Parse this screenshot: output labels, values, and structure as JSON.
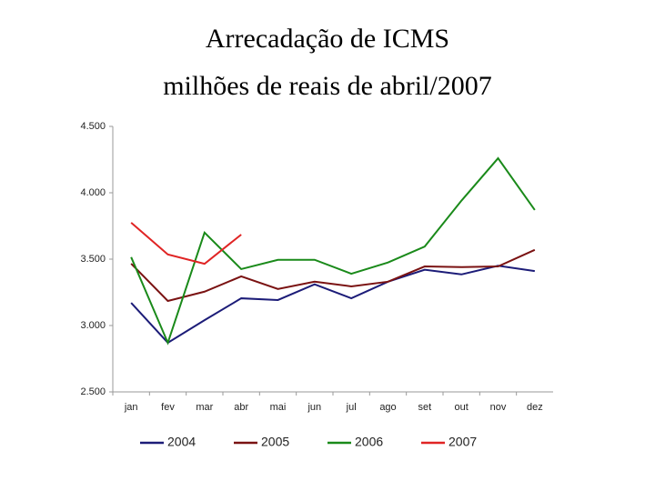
{
  "chart_data": {
    "type": "line",
    "title": "Arrecadação de ICMS",
    "subtitle": "milhões de reais de abril/2007",
    "categories": [
      "jan",
      "fev",
      "mar",
      "abr",
      "mai",
      "jun",
      "jul",
      "ago",
      "set",
      "out",
      "nov",
      "dez"
    ],
    "series": [
      {
        "name": "2004",
        "color": "#1c1c78",
        "values": [
          3171,
          2870,
          3040,
          3205,
          3192,
          3310,
          3205,
          3330,
          3420,
          3385,
          3450,
          3410
        ]
      },
      {
        "name": "2005",
        "color": "#7a1212",
        "values": [
          3466,
          3185,
          3255,
          3370,
          3275,
          3330,
          3295,
          3330,
          3445,
          3440,
          3445,
          3570
        ]
      },
      {
        "name": "2006",
        "color": "#1a8a1a",
        "values": [
          3515,
          2870,
          3700,
          3425,
          3495,
          3495,
          3390,
          3475,
          3595,
          3940,
          4260,
          3870
        ]
      },
      {
        "name": "2007",
        "color": "#e02424",
        "values": [
          3775,
          3535,
          3465,
          3685,
          null,
          null,
          null,
          null,
          null,
          null,
          null,
          null
        ]
      }
    ],
    "ylim": [
      2500,
      4500
    ],
    "yticks": [
      {
        "value": 2500,
        "label": "2.500"
      },
      {
        "value": 3000,
        "label": "3.000"
      },
      {
        "value": 3500,
        "label": "3.500"
      },
      {
        "value": 4000,
        "label": "4.000"
      },
      {
        "value": 4500,
        "label": "4.500"
      }
    ],
    "legend": "bottom"
  }
}
